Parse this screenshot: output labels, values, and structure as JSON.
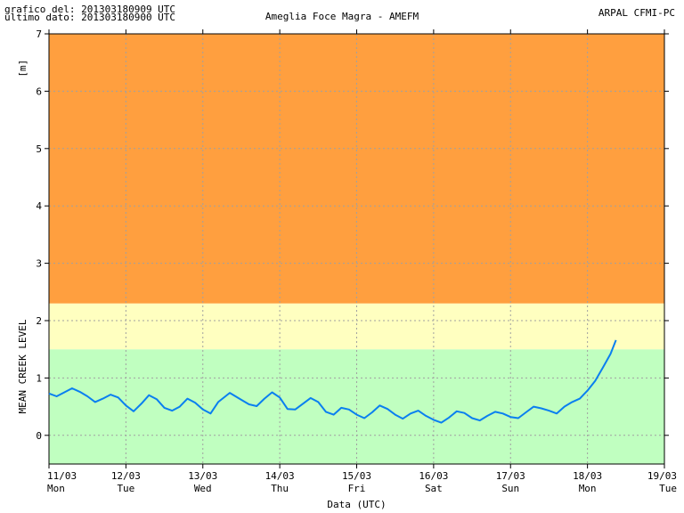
{
  "header": {
    "generated": "grafico del: 201303180909 UTC",
    "last_data": "ultimo dato: 201303180900 UTC",
    "station": "Ameglia Foce Magra - AMEFM",
    "source": "ARPAL CFMI-PC"
  },
  "colors": {
    "zone_high": "#ff9f3f",
    "zone_mid": "#ffffc0",
    "zone_low": "#c0ffc0",
    "series": "#0a7ff0",
    "grid": "#a0a0a0"
  },
  "chart_data": {
    "type": "line",
    "title": "Ameglia Foce Magra - AMEFM",
    "xlabel": "Data (UTC)",
    "ylabel": "[m]",
    "ylabel2": "MEAN CREEK LEVEL",
    "ylim": [
      -0.5,
      7
    ],
    "xlim": [
      0,
      8
    ],
    "yticks": [
      0,
      1,
      2,
      3,
      4,
      5,
      6,
      7
    ],
    "xticks": [
      {
        "date": "11/03",
        "day": "Mon"
      },
      {
        "date": "12/03",
        "day": "Tue"
      },
      {
        "date": "13/03",
        "day": "Wed"
      },
      {
        "date": "14/03",
        "day": "Thu"
      },
      {
        "date": "15/03",
        "day": "Fri"
      },
      {
        "date": "16/03",
        "day": "Sat"
      },
      {
        "date": "17/03",
        "day": "Sun"
      },
      {
        "date": "18/03",
        "day": "Mon"
      },
      {
        "date": "19/03",
        "day": "Tue"
      }
    ],
    "grid": true,
    "zones": [
      {
        "from": -0.5,
        "to": 1.5,
        "level": "low"
      },
      {
        "from": 1.5,
        "to": 2.3,
        "level": "mid"
      },
      {
        "from": 2.3,
        "to": 7.0,
        "level": "high"
      }
    ],
    "series": [
      {
        "points": [
          [
            0.0,
            0.73
          ],
          [
            0.1,
            0.68
          ],
          [
            0.2,
            0.75
          ],
          [
            0.3,
            0.82
          ],
          [
            0.4,
            0.76
          ],
          [
            0.5,
            0.68
          ],
          [
            0.6,
            0.58
          ],
          [
            0.7,
            0.64
          ],
          [
            0.8,
            0.71
          ],
          [
            0.9,
            0.66
          ],
          [
            1.0,
            0.52
          ],
          [
            1.1,
            0.42
          ],
          [
            1.2,
            0.55
          ],
          [
            1.3,
            0.7
          ],
          [
            1.4,
            0.63
          ],
          [
            1.5,
            0.48
          ],
          [
            1.6,
            0.43
          ],
          [
            1.7,
            0.5
          ],
          [
            1.8,
            0.64
          ],
          [
            1.9,
            0.57
          ],
          [
            2.0,
            0.45
          ],
          [
            2.1,
            0.38
          ],
          [
            2.2,
            0.58
          ],
          [
            2.35,
            0.74
          ],
          [
            2.5,
            0.62
          ],
          [
            2.6,
            0.54
          ],
          [
            2.7,
            0.51
          ],
          [
            2.8,
            0.64
          ],
          [
            2.9,
            0.75
          ],
          [
            3.0,
            0.66
          ],
          [
            3.1,
            0.46
          ],
          [
            3.2,
            0.45
          ],
          [
            3.3,
            0.55
          ],
          [
            3.4,
            0.65
          ],
          [
            3.5,
            0.58
          ],
          [
            3.6,
            0.41
          ],
          [
            3.7,
            0.36
          ],
          [
            3.8,
            0.48
          ],
          [
            3.9,
            0.45
          ],
          [
            4.0,
            0.36
          ],
          [
            4.1,
            0.3
          ],
          [
            4.2,
            0.4
          ],
          [
            4.3,
            0.52
          ],
          [
            4.4,
            0.46
          ],
          [
            4.5,
            0.36
          ],
          [
            4.6,
            0.29
          ],
          [
            4.7,
            0.38
          ],
          [
            4.8,
            0.43
          ],
          [
            4.9,
            0.34
          ],
          [
            5.0,
            0.27
          ],
          [
            5.1,
            0.22
          ],
          [
            5.2,
            0.31
          ],
          [
            5.3,
            0.42
          ],
          [
            5.4,
            0.39
          ],
          [
            5.5,
            0.3
          ],
          [
            5.6,
            0.26
          ],
          [
            5.7,
            0.34
          ],
          [
            5.8,
            0.41
          ],
          [
            5.9,
            0.38
          ],
          [
            6.0,
            0.32
          ],
          [
            6.1,
            0.3
          ],
          [
            6.2,
            0.4
          ],
          [
            6.3,
            0.5
          ],
          [
            6.4,
            0.47
          ],
          [
            6.5,
            0.43
          ],
          [
            6.6,
            0.38
          ],
          [
            6.7,
            0.5
          ],
          [
            6.8,
            0.58
          ],
          [
            6.9,
            0.64
          ],
          [
            7.0,
            0.78
          ],
          [
            7.1,
            0.95
          ],
          [
            7.2,
            1.18
          ],
          [
            7.3,
            1.42
          ],
          [
            7.37,
            1.66
          ]
        ]
      }
    ]
  }
}
